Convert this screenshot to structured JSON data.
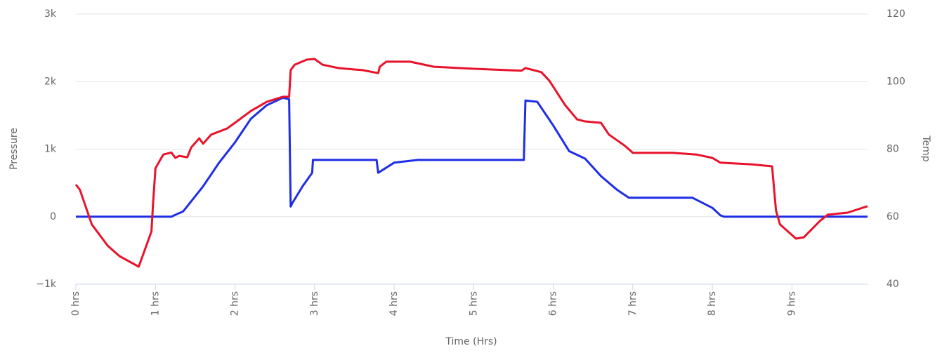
{
  "chart_data": {
    "type": "line",
    "x_label": "Time (Hrs)",
    "y_label": "Pressure",
    "y2_label": "Temp",
    "xlim": [
      0,
      9.95
    ],
    "xticks": [
      {
        "value": 0,
        "label": "0 hrs"
      },
      {
        "value": 1,
        "label": "1 hrs"
      },
      {
        "value": 2,
        "label": "2 hrs"
      },
      {
        "value": 3,
        "label": "3 hrs"
      },
      {
        "value": 4,
        "label": "4 hrs"
      },
      {
        "value": 5,
        "label": "5 hrs"
      },
      {
        "value": 6,
        "label": "6 hrs"
      },
      {
        "value": 7,
        "label": "7 hrs"
      },
      {
        "value": 8,
        "label": "8 hrs"
      },
      {
        "value": 9,
        "label": "9 hrs"
      }
    ],
    "ylim": [
      -1000,
      3000
    ],
    "yticks": [
      {
        "value": -1000,
        "label": "−1k"
      },
      0,
      {
        "value": 1000,
        "label": "1k"
      },
      {
        "value": 2000,
        "label": "2k"
      },
      {
        "value": 3000,
        "label": "3k"
      }
    ],
    "y2lim": [
      40,
      120
    ],
    "y2ticks": [
      40,
      60,
      80,
      100,
      120
    ],
    "grid": true,
    "series": [
      {
        "name": "Pressure",
        "color": "#1f2ee6",
        "x": [
          0,
          1.2,
          1.35,
          1.6,
          1.8,
          2.0,
          2.2,
          2.4,
          2.6,
          2.68,
          2.7,
          2.72,
          2.85,
          2.97,
          2.98,
          3.78,
          3.8,
          4.0,
          4.3,
          5.63,
          5.65,
          5.8,
          6.0,
          6.2,
          6.4,
          6.6,
          6.8,
          6.95,
          7.75,
          7.85,
          8.0,
          8.1,
          8.15,
          9.95
        ],
        "values": [
          0,
          0,
          80,
          450,
          800,
          1100,
          1450,
          1650,
          1760,
          1740,
          150,
          200,
          450,
          650,
          840,
          840,
          650,
          800,
          840,
          840,
          1720,
          1700,
          1350,
          970,
          860,
          600,
          400,
          280,
          280,
          220,
          130,
          20,
          0,
          0
        ]
      },
      {
        "name": "Temp",
        "color": "#e8132b",
        "axis": "y2",
        "x": [
          0,
          0.05,
          0.2,
          0.4,
          0.55,
          0.79,
          0.95,
          0.97,
          1.0,
          1.05,
          1.1,
          1.2,
          1.25,
          1.3,
          1.4,
          1.45,
          1.55,
          1.6,
          1.7,
          1.9,
          2.0,
          2.2,
          2.4,
          2.6,
          2.68,
          2.7,
          2.75,
          2.9,
          3.0,
          3.1,
          3.3,
          3.6,
          3.8,
          3.82,
          3.9,
          4.2,
          4.5,
          5.0,
          5.6,
          5.65,
          5.85,
          5.95,
          6.15,
          6.3,
          6.4,
          6.6,
          6.7,
          6.9,
          7.0,
          7.5,
          7.8,
          8.0,
          8.1,
          8.5,
          8.75,
          8.8,
          8.85,
          9.05,
          9.15,
          9.35,
          9.45,
          9.7,
          9.95
        ],
        "values": [
          69.5,
          68,
          57.7,
          51.4,
          48.3,
          45.2,
          55.6,
          63.9,
          74.3,
          76.4,
          78.4,
          79,
          77.4,
          78,
          77.6,
          80.5,
          83.2,
          81.6,
          84.3,
          86.1,
          87.8,
          91.3,
          94,
          95.5,
          95.5,
          103.4,
          105,
          106.5,
          106.7,
          105,
          104,
          103.4,
          102.5,
          104.4,
          105.9,
          105.9,
          104.4,
          103.8,
          103.2,
          104,
          102.8,
          100.3,
          93,
          88.8,
          88.2,
          87.8,
          84.3,
          81,
          78.9,
          78.9,
          78.4,
          77.4,
          76,
          75.5,
          74.9,
          61.8,
          57.7,
          53.5,
          53.9,
          58.7,
          60.6,
          61.2,
          63.1
        ]
      }
    ]
  }
}
